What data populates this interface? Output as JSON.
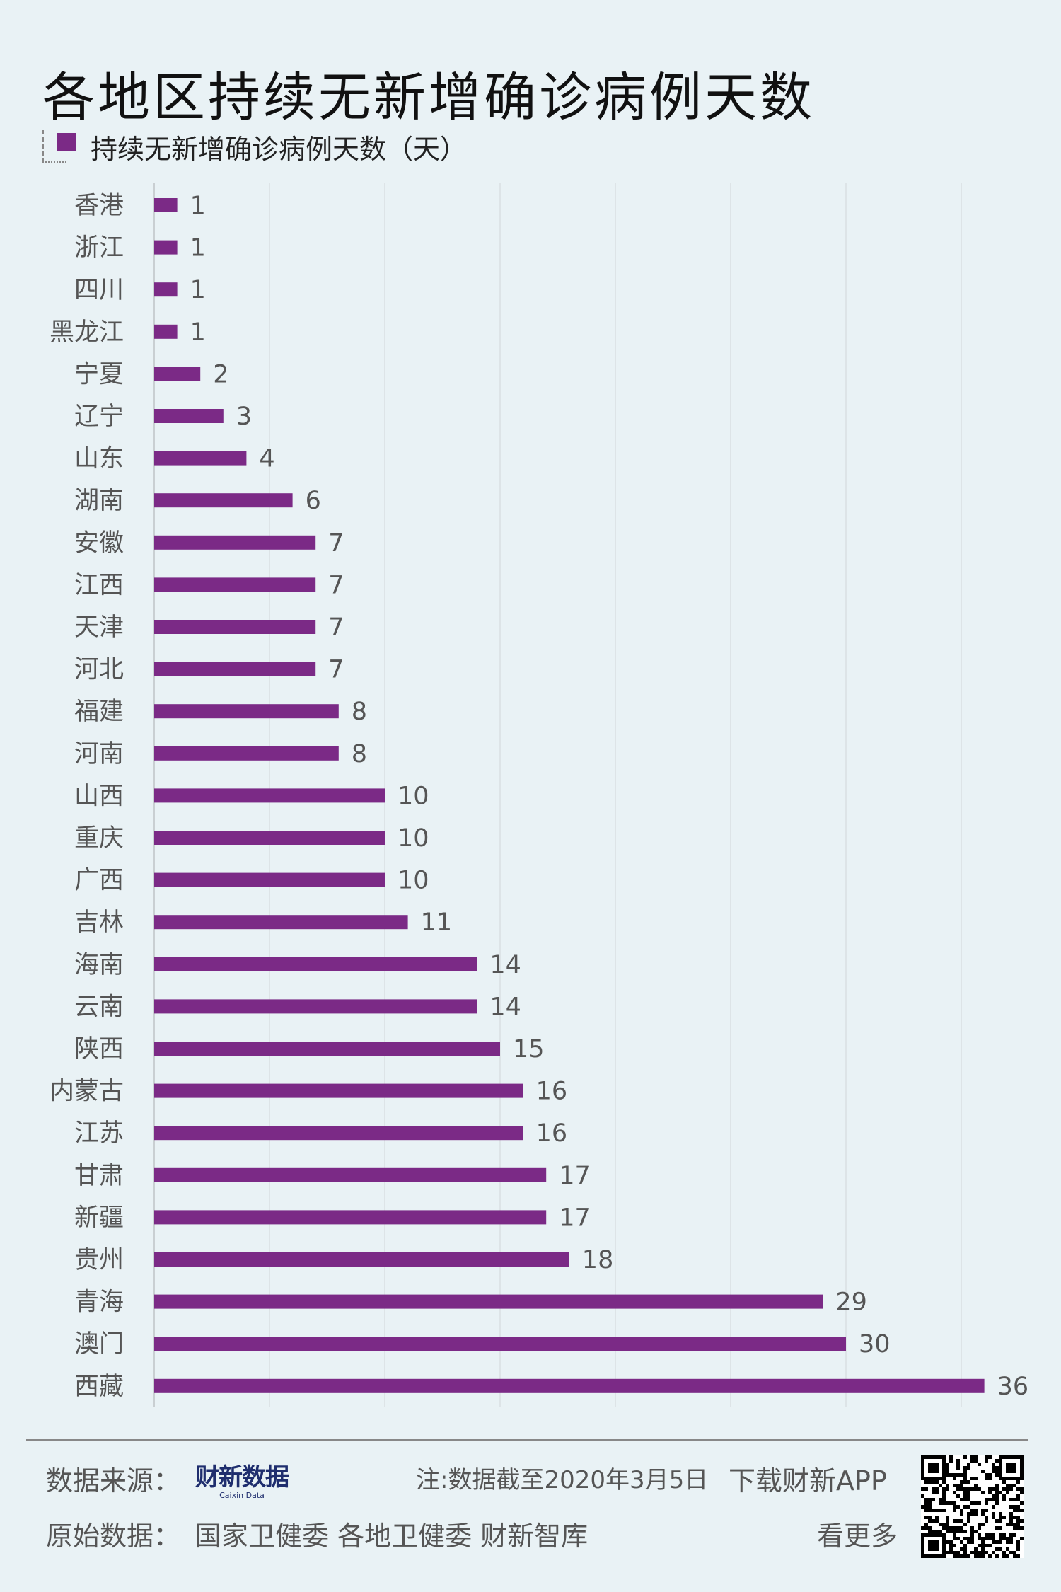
{
  "title": "各地区持续无新增确诊病例天数",
  "chart_data": {
    "type": "bar",
    "orientation": "horizontal",
    "title": "各地区持续无新增确诊病例天数",
    "legend": [
      {
        "name": "持续无新增确诊病例天数（天）",
        "color": "#7b2a86"
      }
    ],
    "legend_placement": "top-left",
    "categories": [
      "香港",
      "浙江",
      "四川",
      "黑龙江",
      "宁夏",
      "辽宁",
      "山东",
      "湖南",
      "安徽",
      "江西",
      "天津",
      "河北",
      "福建",
      "河南",
      "山西",
      "重庆",
      "广西",
      "吉林",
      "海南",
      "云南",
      "陕西",
      "内蒙古",
      "江苏",
      "甘肃",
      "新疆",
      "贵州",
      "青海",
      "澳门",
      "西藏"
    ],
    "series": [
      {
        "name": "持续无新增确诊病例天数（天）",
        "values": [
          1,
          1,
          1,
          1,
          2,
          3,
          4,
          6,
          7,
          7,
          7,
          7,
          8,
          8,
          10,
          10,
          10,
          11,
          14,
          14,
          15,
          16,
          16,
          17,
          17,
          18,
          29,
          30,
          36
        ]
      }
    ],
    "xlim": [
      0,
      35
    ],
    "grid": true,
    "grid_step": 5,
    "bar_color": "#7b2a86"
  },
  "footer": {
    "source_label": "数据来源：",
    "source_logo": "财新数据",
    "source_logo_sub": "Caixin Data",
    "note": "注:数据截至2020年3月5日",
    "download": "下载财新APP",
    "more": "看更多",
    "raw_label": "原始数据：",
    "raw_sources": "国家卫健委  各地卫健委  财新智库"
  }
}
